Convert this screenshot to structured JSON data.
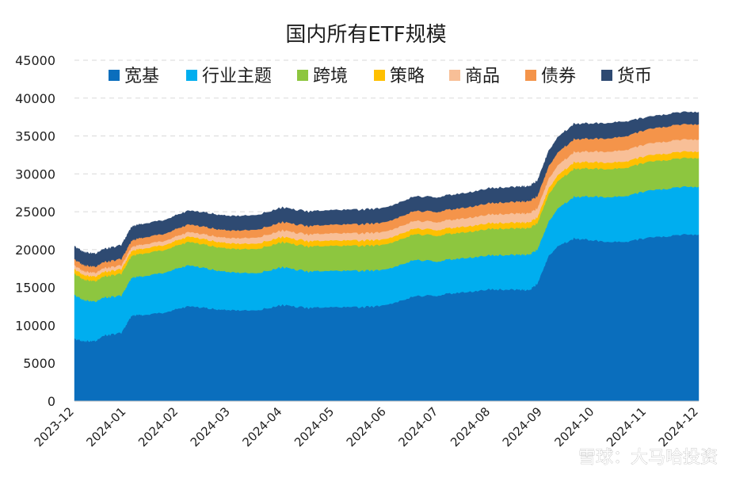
{
  "chart_data": {
    "type": "area",
    "stacked": true,
    "title": "国内所有ETF规模",
    "xlabel": "",
    "ylabel": "",
    "ylim": [
      0,
      45000
    ],
    "yticks": [
      0,
      5000,
      10000,
      15000,
      20000,
      25000,
      30000,
      35000,
      40000,
      45000
    ],
    "x_tick_labels": [
      "2023-12",
      "2024-01",
      "2024-02",
      "2024-03",
      "2024-04",
      "2024-05",
      "2024-06",
      "2024-07",
      "2024-08",
      "2024-09",
      "2024-10",
      "2024-11",
      "2024-12"
    ],
    "x_months": [
      0,
      1,
      2,
      3,
      4,
      5,
      6,
      7,
      8,
      9,
      10,
      11,
      12
    ],
    "grid": "horizontal-dashed",
    "legend_position": "top",
    "series": [
      {
        "name": "宽基",
        "color": "#0a6ebd",
        "x": [
          0,
          0.2,
          0.4,
          0.6,
          0.9,
          1.1,
          1.3,
          1.8,
          2.2,
          2.6,
          3.0,
          3.5,
          4.0,
          4.5,
          5.0,
          5.5,
          6.0,
          6.5,
          7.0,
          7.5,
          8.0,
          8.5,
          8.75,
          8.9,
          9.1,
          9.3,
          9.6,
          10.0,
          10.5,
          11.0,
          11.5,
          12.0
        ],
        "values": [
          8200,
          7900,
          8000,
          8700,
          9000,
          11300,
          11400,
          11800,
          12600,
          12200,
          12000,
          12000,
          12700,
          12300,
          12400,
          12400,
          12600,
          13800,
          14000,
          14400,
          14800,
          14700,
          14700,
          15500,
          19000,
          20500,
          21500,
          21200,
          21000,
          21500,
          21900,
          22000
        ]
      },
      {
        "name": "行业主题",
        "color": "#00aeef",
        "x": [
          0,
          0.2,
          0.4,
          0.6,
          0.9,
          1.1,
          1.3,
          1.8,
          2.2,
          2.6,
          3.0,
          3.5,
          4.0,
          4.5,
          5.0,
          5.5,
          6.0,
          6.5,
          7.0,
          7.5,
          8.0,
          8.5,
          8.75,
          8.9,
          9.1,
          9.3,
          9.6,
          10.0,
          10.5,
          11.0,
          11.5,
          12.0
        ],
        "values": [
          5800,
          5400,
          5200,
          5000,
          4900,
          5000,
          5100,
          5300,
          5400,
          5200,
          5000,
          4900,
          5000,
          4800,
          4800,
          4800,
          4700,
          4800,
          4500,
          4500,
          4500,
          4600,
          4700,
          4500,
          4500,
          5000,
          5500,
          5800,
          6000,
          6200,
          6300,
          6300
        ]
      },
      {
        "name": "跨境",
        "color": "#8dc63f",
        "x": [
          0,
          0.2,
          0.4,
          0.6,
          0.9,
          1.1,
          1.3,
          1.8,
          2.2,
          2.6,
          3.0,
          3.5,
          4.0,
          4.5,
          5.0,
          5.5,
          6.0,
          6.5,
          7.0,
          7.5,
          8.0,
          8.5,
          8.75,
          8.9,
          9.1,
          9.3,
          9.6,
          10.0,
          10.5,
          11.0,
          11.5,
          12.0
        ],
        "values": [
          2800,
          2700,
          2700,
          2800,
          2900,
          2900,
          3000,
          3000,
          3100,
          3100,
          3100,
          3200,
          3300,
          3300,
          3300,
          3300,
          3300,
          3400,
          3400,
          3400,
          3500,
          3500,
          3500,
          3500,
          3600,
          3600,
          3700,
          3700,
          3700,
          3800,
          3800,
          3800
        ]
      },
      {
        "name": "策略",
        "color": "#ffc000",
        "x": [
          0,
          0.2,
          0.4,
          0.6,
          0.9,
          1.1,
          1.3,
          1.8,
          2.2,
          2.6,
          3.0,
          3.5,
          4.0,
          4.5,
          5.0,
          5.5,
          6.0,
          6.5,
          7.0,
          7.5,
          8.0,
          8.5,
          8.75,
          8.9,
          9.1,
          9.3,
          9.6,
          10.0,
          10.5,
          11.0,
          11.5,
          12.0
        ],
        "values": [
          600,
          600,
          600,
          600,
          600,
          650,
          650,
          650,
          700,
          700,
          700,
          700,
          700,
          700,
          700,
          700,
          700,
          750,
          750,
          750,
          750,
          750,
          750,
          750,
          800,
          800,
          850,
          850,
          850,
          850,
          850,
          850
        ]
      },
      {
        "name": "商品",
        "color": "#f8bf97",
        "x": [
          0,
          0.2,
          0.4,
          0.6,
          0.9,
          1.1,
          1.3,
          1.8,
          2.2,
          2.6,
          3.0,
          3.5,
          4.0,
          4.5,
          5.0,
          5.5,
          6.0,
          6.5,
          7.0,
          7.5,
          8.0,
          8.5,
          8.75,
          8.9,
          9.1,
          9.3,
          9.6,
          10.0,
          10.5,
          11.0,
          11.5,
          12.0
        ],
        "values": [
          500,
          500,
          500,
          500,
          500,
          500,
          550,
          550,
          600,
          650,
          700,
          800,
          850,
          900,
          950,
          950,
          1000,
          1000,
          1050,
          1100,
          1150,
          1200,
          1200,
          1200,
          1250,
          1300,
          1350,
          1400,
          1500,
          1550,
          1600,
          1600
        ]
      },
      {
        "name": "债券",
        "color": "#f4944a",
        "x": [
          0,
          0.2,
          0.4,
          0.6,
          0.9,
          1.1,
          1.3,
          1.8,
          2.2,
          2.6,
          3.0,
          3.5,
          4.0,
          4.5,
          5.0,
          5.5,
          6.0,
          6.5,
          7.0,
          7.5,
          8.0,
          8.5,
          8.75,
          8.9,
          9.1,
          9.3,
          9.6,
          10.0,
          10.5,
          11.0,
          11.5,
          12.0
        ],
        "values": [
          800,
          800,
          800,
          800,
          850,
          850,
          900,
          950,
          1000,
          1000,
          1000,
          1050,
          1100,
          1100,
          1150,
          1200,
          1250,
          1300,
          1350,
          1400,
          1500,
          1550,
          1600,
          1600,
          1650,
          1700,
          1700,
          1700,
          1800,
          1900,
          2000,
          2000
        ]
      },
      {
        "name": "货币",
        "color": "#2e4a72",
        "x": [
          0,
          0.2,
          0.4,
          0.6,
          0.9,
          1.1,
          1.3,
          1.8,
          2.2,
          2.6,
          3.0,
          3.5,
          4.0,
          4.5,
          5.0,
          5.5,
          6.0,
          6.5,
          7.0,
          7.5,
          8.0,
          8.5,
          8.75,
          8.9,
          9.1,
          9.3,
          9.6,
          10.0,
          10.5,
          11.0,
          11.5,
          12.0
        ],
        "values": [
          1700,
          1700,
          1700,
          1700,
          1800,
          1800,
          1800,
          1800,
          1800,
          1900,
          1900,
          1900,
          1900,
          1900,
          1900,
          1900,
          1900,
          1900,
          1900,
          1900,
          1950,
          1950,
          1950,
          2000,
          2000,
          2000,
          2000,
          2000,
          2000,
          1600,
          1600,
          1600
        ]
      }
    ]
  },
  "watermark": "雪球：大马哈投资"
}
